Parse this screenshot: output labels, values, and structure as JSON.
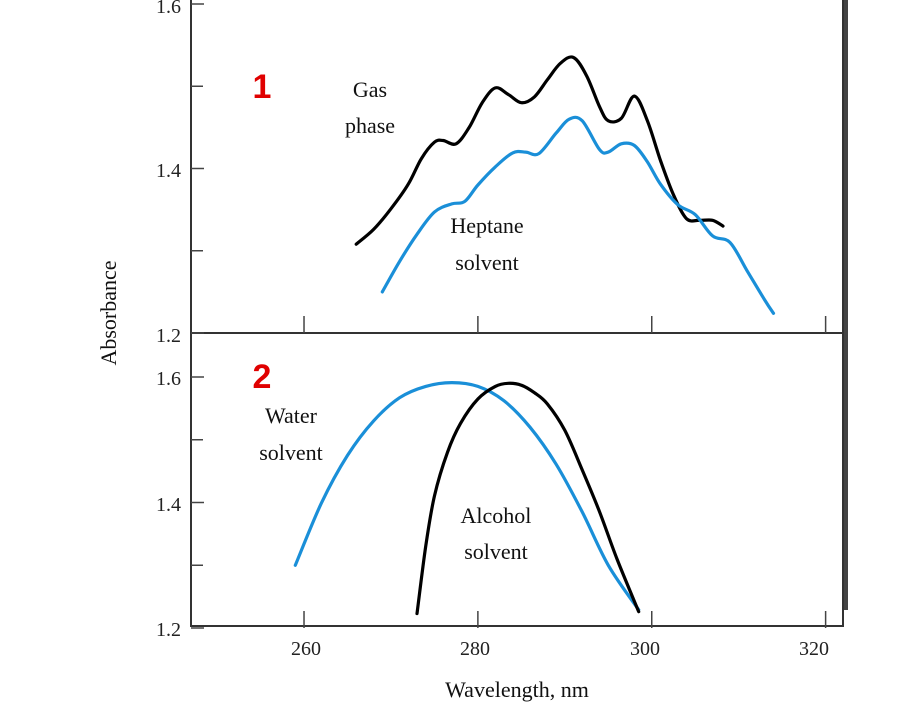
{
  "chart_data": [
    {
      "type": "line",
      "panel_label": "1",
      "ylabel": "Absorbance",
      "xlabel": "Wavelength, nm",
      "xlim": [
        247,
        322
      ],
      "ylim": [
        1.2,
        1.6
      ],
      "y_tick_labels": [
        "1.6",
        "1.4",
        "1.2"
      ],
      "series": [
        {
          "name": "Gas phase",
          "label_lines": [
            "Gas",
            "phase"
          ],
          "color": "#000000",
          "x": [
            266,
            268,
            270,
            272,
            273.5,
            275,
            276,
            277.5,
            279,
            280.5,
            282,
            283.5,
            285,
            286.5,
            288,
            289.5,
            291,
            292.5,
            294,
            295,
            296.5,
            298,
            299.5,
            301,
            302.5,
            304,
            305.5,
            307,
            308.2
          ],
          "y": [
            1.308,
            1.326,
            1.351,
            1.381,
            1.412,
            1.432,
            1.434,
            1.43,
            1.45,
            1.48,
            1.498,
            1.49,
            1.48,
            1.487,
            1.508,
            1.528,
            1.535,
            1.513,
            1.475,
            1.458,
            1.461,
            1.488,
            1.458,
            1.41,
            1.368,
            1.339,
            1.337,
            1.337,
            1.33
          ]
        },
        {
          "name": "Heptane solvent",
          "label_lines": [
            "Heptane",
            "solvent"
          ],
          "color": "#1a8fd8",
          "x": [
            269,
            271,
            273,
            275,
            277,
            278.5,
            280,
            282,
            284,
            285.5,
            287,
            289,
            290.5,
            292,
            294,
            295,
            296.5,
            298,
            299.5,
            301,
            303,
            305,
            307,
            309,
            311,
            313,
            314
          ],
          "y": [
            1.25,
            1.287,
            1.32,
            1.347,
            1.357,
            1.36,
            1.38,
            1.402,
            1.419,
            1.42,
            1.418,
            1.443,
            1.46,
            1.458,
            1.423,
            1.42,
            1.43,
            1.428,
            1.408,
            1.381,
            1.356,
            1.344,
            1.318,
            1.31,
            1.275,
            1.24,
            1.224
          ]
        }
      ]
    },
    {
      "type": "line",
      "panel_label": "2",
      "ylabel": "Absorbance",
      "xlabel": "Wavelength, nm",
      "xlim": [
        247,
        322
      ],
      "ylim": [
        1.2,
        1.6
      ],
      "x_tick_labels": [
        "260",
        "280",
        "300",
        "320"
      ],
      "y_tick_labels": [
        "1.6",
        "1.4",
        "1.2"
      ],
      "series": [
        {
          "name": "Water solvent",
          "label_lines": [
            "Water",
            "solvent"
          ],
          "color": "#1a8fd8",
          "x": [
            259,
            262,
            265,
            268,
            271,
            274,
            277,
            280,
            283,
            286,
            289,
            292,
            295,
            298.5
          ],
          "y": [
            1.3,
            1.399,
            1.475,
            1.53,
            1.567,
            1.585,
            1.591,
            1.585,
            1.562,
            1.52,
            1.461,
            1.385,
            1.3,
            1.229
          ]
        },
        {
          "name": "Alcohol solvent",
          "label_lines": [
            "Alcohol",
            "solvent"
          ],
          "color": "#000000",
          "x": [
            273,
            274,
            275,
            276.5,
            278,
            280,
            282,
            283.5,
            285,
            286.5,
            288,
            290,
            292,
            294,
            296,
            298.5
          ],
          "y": [
            1.223,
            1.33,
            1.41,
            1.48,
            1.526,
            1.565,
            1.585,
            1.59,
            1.587,
            1.575,
            1.557,
            1.515,
            1.452,
            1.385,
            1.31,
            1.226
          ]
        }
      ]
    }
  ]
}
